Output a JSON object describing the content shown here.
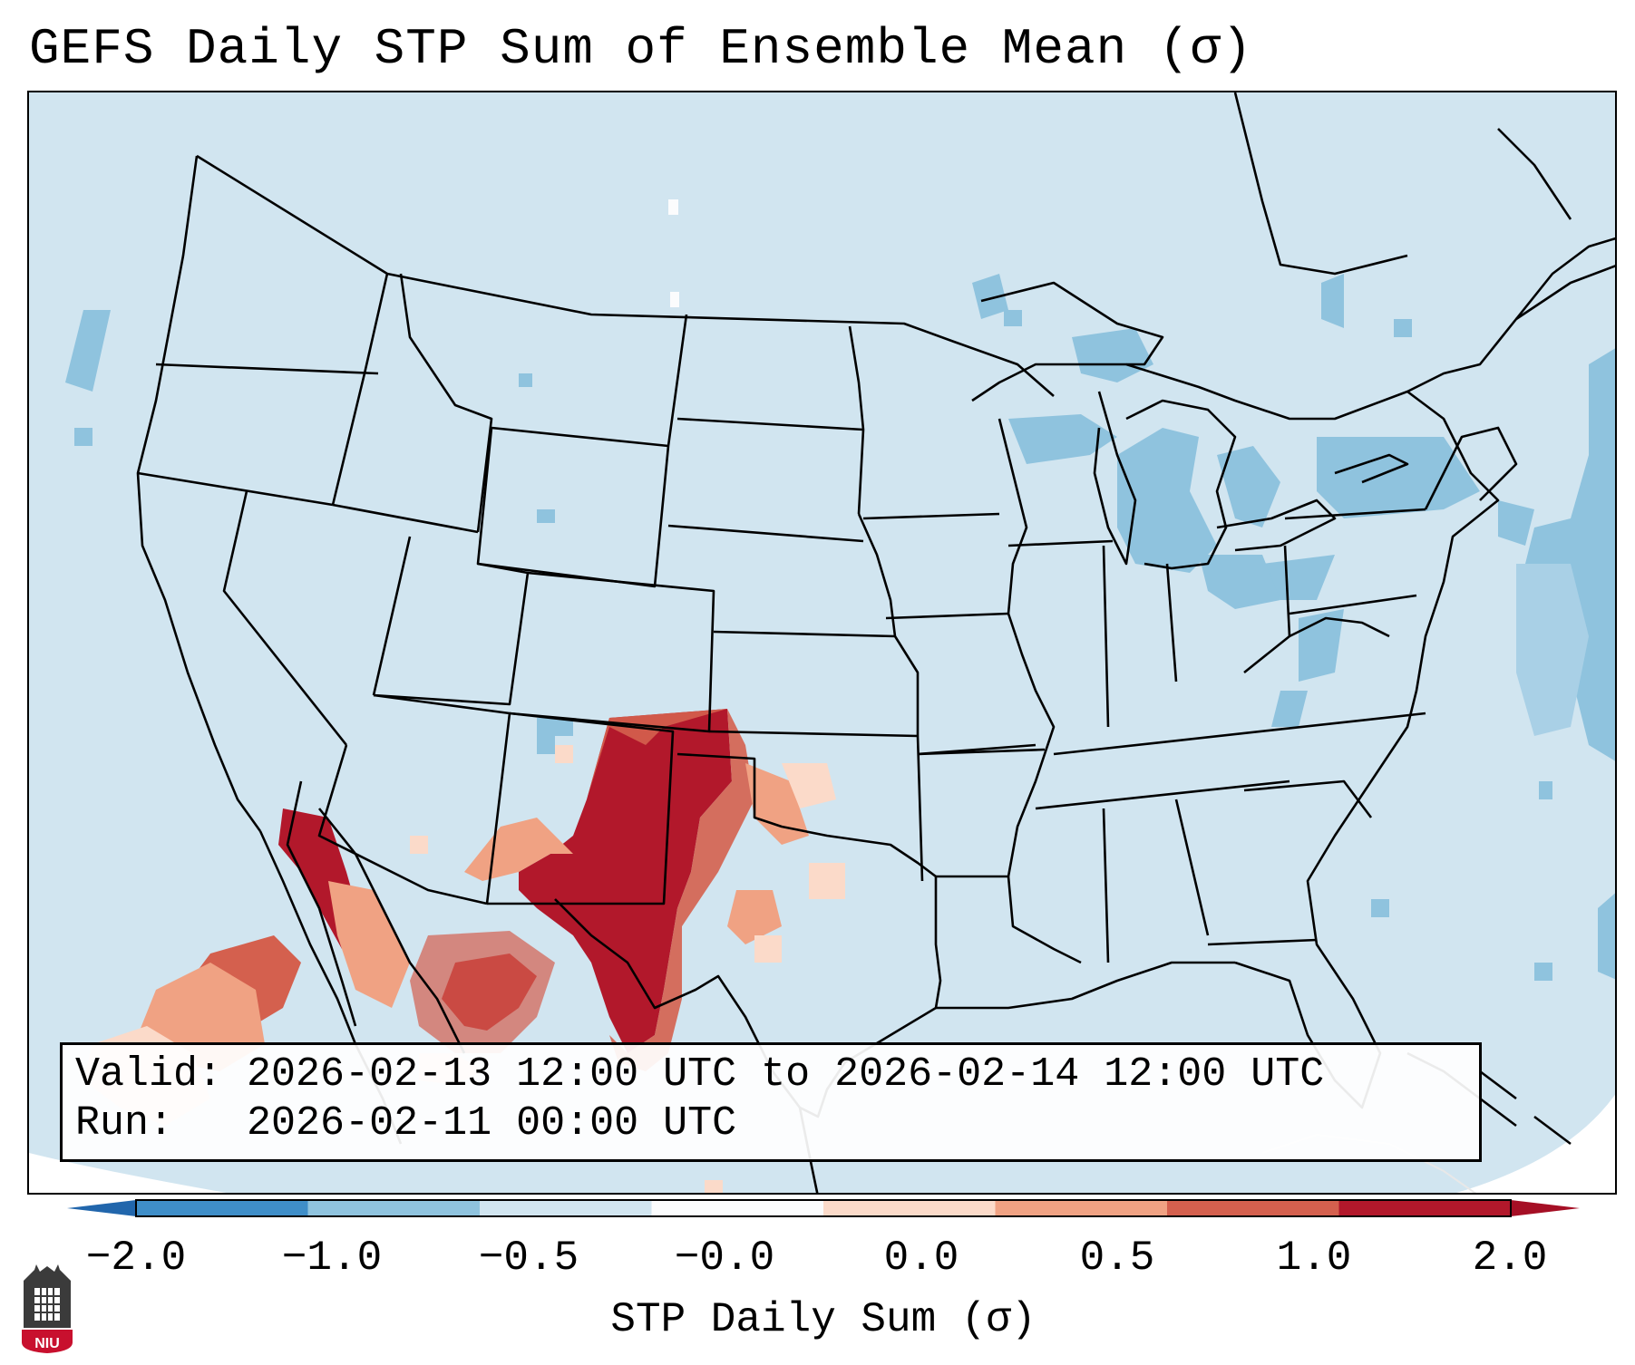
{
  "title": "GEFS Daily STP Sum of Ensemble Mean (σ)",
  "info": {
    "valid_label": "Valid:",
    "valid_text": "2026-02-13 12:00 UTC to 2026-02-14 12:00 UTC",
    "run_label": "Run:",
    "run_text": "2026-02-11 00:00 UTC"
  },
  "colorbar": {
    "label": "STP Daily Sum (σ)",
    "tick_labels": [
      "−2.0",
      "−1.0",
      "−0.5",
      "−0.0",
      "0.0",
      "0.5",
      "1.0",
      "2.0"
    ],
    "segment_colors": [
      "#3f8ec8",
      "#8fc3de",
      "#d1e5f0",
      "#fbfcfd",
      "#fbdac9",
      "#f0a283",
      "#d4604e",
      "#b2182b"
    ],
    "under_color": "#2166ac",
    "over_color": "#a50f25"
  },
  "map": {
    "projection": "Lambert conformal (CONUS)",
    "background_color": "#d1e5f0",
    "outside_color": "#ffffff",
    "border_color": "#000000",
    "features": [
      "us-state-borders",
      "coastlines",
      "canada-mexico-borders",
      "great-lakes"
    ],
    "anomaly_regions": [
      {
        "name": "southern-plains-high",
        "category": "2.0",
        "color": "#b2182b",
        "states": [
          "Texas Panhandle",
          "West Texas",
          "Oklahoma Panhandle",
          "eastern New Mexico"
        ]
      },
      {
        "name": "chihuahua-high",
        "category": "2.0",
        "color": "#b2182b",
        "states": [
          "Chihuahua",
          "Sonora",
          "Gulf of California"
        ]
      },
      {
        "name": "baja-pacific-positive",
        "category": "1.0",
        "color": "#d4604e",
        "states": [
          "Baja California",
          "eastern Pacific"
        ]
      },
      {
        "name": "great-lakes-negative",
        "category": "-0.5",
        "color": "#8fc3de",
        "states": [
          "Michigan",
          "Ohio",
          "New York",
          "Ontario"
        ]
      },
      {
        "name": "western-atlantic-negative",
        "category": "-0.5",
        "color": "#8fc3de",
        "states": [
          "Atlantic offshore"
        ]
      }
    ]
  },
  "logo": {
    "text": "NIU",
    "color": "#c8102e"
  }
}
